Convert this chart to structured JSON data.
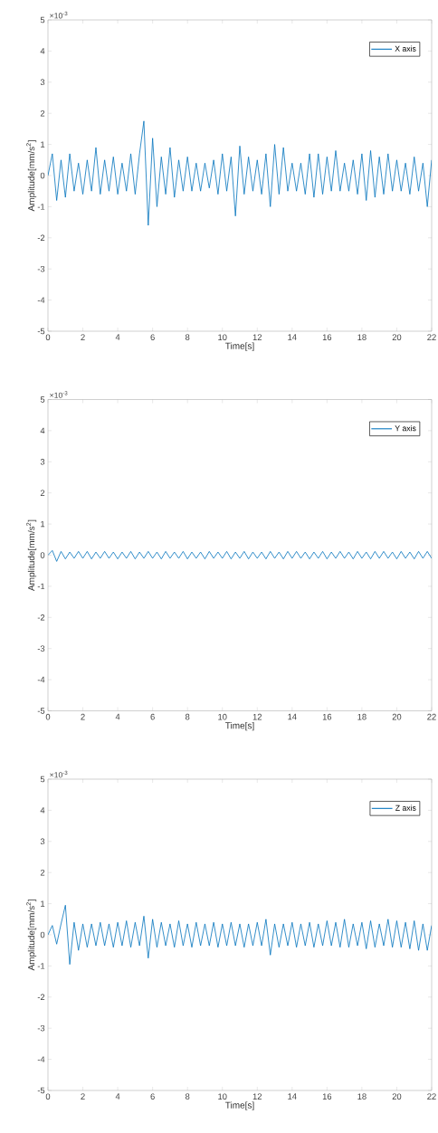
{
  "chart_data": [
    {
      "type": "line",
      "xlabel": "Time[s]",
      "ylabel": "Amplitude[mm/s$^{2}$]",
      "annotations": [
        "×10$^{-3}$"
      ],
      "legend": "top right",
      "x": [
        0,
        0.25,
        0.5,
        0.75,
        1,
        1.25,
        1.5,
        1.75,
        2,
        2.25,
        2.5,
        2.75,
        3,
        3.25,
        3.5,
        3.75,
        4,
        4.25,
        4.5,
        4.75,
        5,
        5.25,
        5.5,
        5.75,
        6,
        6.25,
        6.5,
        6.75,
        7,
        7.25,
        7.5,
        7.75,
        8,
        8.25,
        8.5,
        8.75,
        9,
        9.25,
        9.5,
        9.75,
        10,
        10.25,
        10.5,
        10.75,
        11,
        11.25,
        11.5,
        11.75,
        12,
        12.25,
        12.5,
        12.75,
        13,
        13.25,
        13.5,
        13.75,
        14,
        14.25,
        14.5,
        14.75,
        15,
        15.25,
        15.5,
        15.75,
        16,
        16.25,
        16.5,
        16.75,
        17,
        17.25,
        17.5,
        17.75,
        18,
        18.25,
        18.5,
        18.75,
        19,
        19.25,
        19.5,
        19.75,
        20,
        20.25,
        20.5,
        20.75,
        21,
        21.25,
        21.5,
        21.75,
        22
      ],
      "series": [
        {
          "name": "X axis",
          "color": "#0072bd",
          "values": [
            0,
            0.7,
            -0.8,
            0.5,
            -0.7,
            0.7,
            -0.5,
            0.4,
            -0.6,
            0.5,
            -0.5,
            0.9,
            -0.6,
            0.5,
            -0.5,
            0.6,
            -0.6,
            0.4,
            -0.5,
            0.7,
            -0.6,
            0.7,
            1.75,
            -1.6,
            1.2,
            -1.0,
            0.6,
            -0.6,
            0.9,
            -0.7,
            0.5,
            -0.5,
            0.6,
            -0.5,
            0.4,
            -0.5,
            0.4,
            -0.4,
            0.5,
            -0.6,
            0.7,
            -0.5,
            0.6,
            -1.3,
            0.95,
            -0.6,
            0.6,
            -0.5,
            0.5,
            -0.6,
            0.7,
            -1.0,
            1.0,
            -0.6,
            0.9,
            -0.5,
            0.4,
            -0.5,
            0.4,
            -0.6,
            0.7,
            -0.7,
            0.7,
            -0.6,
            0.6,
            -0.5,
            0.8,
            -0.5,
            0.4,
            -0.5,
            0.5,
            -0.6,
            0.7,
            -0.8,
            0.8,
            -0.7,
            0.6,
            -0.6,
            0.7,
            -0.5,
            0.5,
            -0.5,
            0.4,
            -0.6,
            0.6,
            -0.5,
            0.4,
            -1.0,
            0.5
          ]
        }
      ],
      "xlim": [
        0,
        22
      ],
      "ylim": [
        -5,
        5
      ],
      "xticks": [
        0,
        2,
        4,
        6,
        8,
        10,
        12,
        14,
        16,
        18,
        20,
        22
      ],
      "yticks": [
        -5,
        -4,
        -3,
        -2,
        -1,
        0,
        1,
        2,
        3,
        4,
        5
      ]
    },
    {
      "type": "line",
      "xlabel": "Time[s]",
      "ylabel": "Amplitude[mm/s$^{2}$]",
      "annotations": [
        "×10$^{-3}$"
      ],
      "legend": "top right",
      "x": [
        0,
        0.25,
        0.5,
        0.75,
        1,
        1.25,
        1.5,
        1.75,
        2,
        2.25,
        2.5,
        2.75,
        3,
        3.25,
        3.5,
        3.75,
        4,
        4.25,
        4.5,
        4.75,
        5,
        5.25,
        5.5,
        5.75,
        6,
        6.25,
        6.5,
        6.75,
        7,
        7.25,
        7.5,
        7.75,
        8,
        8.25,
        8.5,
        8.75,
        9,
        9.25,
        9.5,
        9.75,
        10,
        10.25,
        10.5,
        10.75,
        11,
        11.25,
        11.5,
        11.75,
        12,
        12.25,
        12.5,
        12.75,
        13,
        13.25,
        13.5,
        13.75,
        14,
        14.25,
        14.5,
        14.75,
        15,
        15.25,
        15.5,
        15.75,
        16,
        16.25,
        16.5,
        16.75,
        17,
        17.25,
        17.5,
        17.75,
        18,
        18.25,
        18.5,
        18.75,
        19,
        19.25,
        19.5,
        19.75,
        20,
        20.25,
        20.5,
        20.75,
        21,
        21.25,
        21.5,
        21.75,
        22
      ],
      "series": [
        {
          "name": "Y axis",
          "color": "#0072bd",
          "values": [
            0,
            0.15,
            -0.2,
            0.12,
            -0.12,
            0.1,
            -0.1,
            0.12,
            -0.1,
            0.12,
            -0.12,
            0.1,
            -0.1,
            0.12,
            -0.1,
            0.1,
            -0.12,
            0.1,
            -0.1,
            0.12,
            -0.12,
            0.1,
            -0.1,
            0.12,
            -0.1,
            0.1,
            -0.12,
            0.12,
            -0.1,
            0.1,
            -0.1,
            0.12,
            -0.12,
            0.1,
            -0.1,
            0.1,
            -0.12,
            0.12,
            -0.1,
            0.1,
            -0.1,
            0.12,
            -0.12,
            0.1,
            -0.1,
            0.12,
            -0.12,
            0.1,
            -0.1,
            0.1,
            -0.12,
            0.12,
            -0.1,
            0.1,
            -0.12,
            0.12,
            -0.1,
            0.12,
            -0.1,
            0.1,
            -0.12,
            0.1,
            -0.1,
            0.12,
            -0.12,
            0.1,
            -0.1,
            0.12,
            -0.1,
            0.1,
            -0.12,
            0.12,
            -0.1,
            0.1,
            -0.12,
            0.12,
            -0.1,
            0.12,
            -0.1,
            0.1,
            -0.12,
            0.12,
            -0.1,
            0.1,
            -0.12,
            0.12,
            -0.1,
            0.12,
            -0.1
          ]
        }
      ],
      "xlim": [
        0,
        22
      ],
      "ylim": [
        -5,
        5
      ],
      "xticks": [
        0,
        2,
        4,
        6,
        8,
        10,
        12,
        14,
        16,
        18,
        20,
        22
      ],
      "yticks": [
        -5,
        -4,
        -3,
        -2,
        -1,
        0,
        1,
        2,
        3,
        4,
        5
      ]
    },
    {
      "type": "line",
      "xlabel": "Time[s]",
      "ylabel": "Amplitude[mm/s$^{2}$]",
      "annotations": [
        "×10$^{-3}$"
      ],
      "legend": "top right",
      "x": [
        0,
        0.25,
        0.5,
        0.75,
        1,
        1.25,
        1.5,
        1.75,
        2,
        2.25,
        2.5,
        2.75,
        3,
        3.25,
        3.5,
        3.75,
        4,
        4.25,
        4.5,
        4.75,
        5,
        5.25,
        5.5,
        5.75,
        6,
        6.25,
        6.5,
        6.75,
        7,
        7.25,
        7.5,
        7.75,
        8,
        8.25,
        8.5,
        8.75,
        9,
        9.25,
        9.5,
        9.75,
        10,
        10.25,
        10.5,
        10.75,
        11,
        11.25,
        11.5,
        11.75,
        12,
        12.25,
        12.5,
        12.75,
        13,
        13.25,
        13.5,
        13.75,
        14,
        14.25,
        14.5,
        14.75,
        15,
        15.25,
        15.5,
        15.75,
        16,
        16.25,
        16.5,
        16.75,
        17,
        17.25,
        17.5,
        17.75,
        18,
        18.25,
        18.5,
        18.75,
        19,
        19.25,
        19.5,
        19.75,
        20,
        20.25,
        20.5,
        20.75,
        21,
        21.25,
        21.5,
        21.75,
        22
      ],
      "series": [
        {
          "name": "Z axis",
          "color": "#0072bd",
          "values": [
            0,
            0.3,
            -0.3,
            0.35,
            0.95,
            -0.95,
            0.4,
            -0.5,
            0.35,
            -0.4,
            0.35,
            -0.35,
            0.4,
            -0.35,
            0.35,
            -0.4,
            0.4,
            -0.35,
            0.45,
            -0.4,
            0.4,
            -0.35,
            0.6,
            -0.75,
            0.5,
            -0.4,
            0.4,
            -0.35,
            0.35,
            -0.4,
            0.45,
            -0.35,
            0.35,
            -0.4,
            0.4,
            -0.35,
            0.35,
            -0.35,
            0.4,
            -0.4,
            0.35,
            -0.35,
            0.4,
            -0.35,
            0.35,
            -0.4,
            0.35,
            -0.35,
            0.4,
            -0.35,
            0.5,
            -0.65,
            0.35,
            -0.4,
            0.35,
            -0.35,
            0.4,
            -0.4,
            0.35,
            -0.35,
            0.4,
            -0.4,
            0.35,
            -0.35,
            0.45,
            -0.35,
            0.4,
            -0.4,
            0.5,
            -0.4,
            0.35,
            -0.35,
            0.4,
            -0.45,
            0.45,
            -0.4,
            0.35,
            -0.35,
            0.5,
            -0.4,
            0.45,
            -0.4,
            0.4,
            -0.45,
            0.45,
            -0.5,
            0.35,
            -0.5,
            0.3
          ]
        }
      ],
      "xlim": [
        0,
        22
      ],
      "ylim": [
        -5,
        5
      ],
      "xticks": [
        0,
        2,
        4,
        6,
        8,
        10,
        12,
        14,
        16,
        18,
        20,
        22
      ],
      "yticks": [
        -5,
        -4,
        -3,
        -2,
        -1,
        0,
        1,
        2,
        3,
        4,
        5
      ]
    }
  ]
}
